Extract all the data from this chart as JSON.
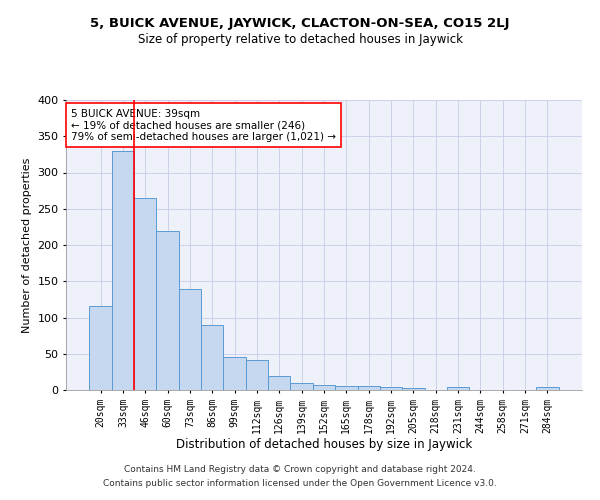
{
  "title": "5, BUICK AVENUE, JAYWICK, CLACTON-ON-SEA, CO15 2LJ",
  "subtitle": "Size of property relative to detached houses in Jaywick",
  "xlabel": "Distribution of detached houses by size in Jaywick",
  "ylabel": "Number of detached properties",
  "footer_line1": "Contains HM Land Registry data © Crown copyright and database right 2024.",
  "footer_line2": "Contains public sector information licensed under the Open Government Licence v3.0.",
  "annotation_line1": "5 BUICK AVENUE: 39sqm",
  "annotation_line2": "← 19% of detached houses are smaller (246)",
  "annotation_line3": "79% of semi-detached houses are larger (1,021) →",
  "bar_color": "#c5d8ef",
  "bar_edge_color": "#5a9bd4",
  "red_line_x": 1.5,
  "categories": [
    "20sqm",
    "33sqm",
    "46sqm",
    "60sqm",
    "73sqm",
    "86sqm",
    "99sqm",
    "112sqm",
    "126sqm",
    "139sqm",
    "152sqm",
    "165sqm",
    "178sqm",
    "192sqm",
    "205sqm",
    "218sqm",
    "231sqm",
    "244sqm",
    "258sqm",
    "271sqm",
    "284sqm"
  ],
  "values": [
    116,
    330,
    265,
    220,
    140,
    90,
    45,
    42,
    20,
    9,
    7,
    6,
    6,
    4,
    3,
    0,
    4,
    0,
    0,
    0,
    4
  ],
  "ylim": [
    0,
    400
  ],
  "yticks": [
    0,
    50,
    100,
    150,
    200,
    250,
    300,
    350,
    400
  ],
  "background_color": "#eef0fa",
  "grid_color": "#c8cce8",
  "title_fontsize": 9.5,
  "subtitle_fontsize": 8.5,
  "ylabel_fontsize": 8,
  "xlabel_fontsize": 8.5,
  "tick_fontsize": 7,
  "annotation_fontsize": 7.5,
  "footer_fontsize": 6.5
}
